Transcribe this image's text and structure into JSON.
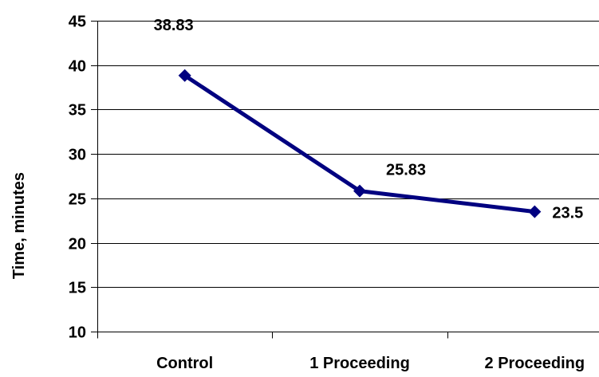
{
  "chart_data": {
    "type": "line",
    "title": "",
    "xlabel": "",
    "ylabel": "Time, minutes",
    "categories": [
      "Control",
      "1 Proceeding",
      "2 Proceeding"
    ],
    "series": [
      {
        "values": [
          38.83,
          25.83,
          23.5
        ],
        "data_labels": [
          "38.83",
          "25.83",
          "23.5"
        ],
        "color": "#000080"
      }
    ],
    "ylim": [
      10,
      45
    ],
    "yticks": [
      10,
      15,
      20,
      25,
      30,
      35,
      40,
      45
    ],
    "ytick_labels": [
      "10",
      "15",
      "20",
      "25",
      "30",
      "35",
      "40",
      "45"
    ],
    "grid": "horizontal",
    "legend": "none",
    "colors": {
      "line": "#000080",
      "marker": "#000080",
      "grid": "#000000",
      "axis": "#000000",
      "text": "#000000",
      "background": "#ffffff"
    }
  }
}
